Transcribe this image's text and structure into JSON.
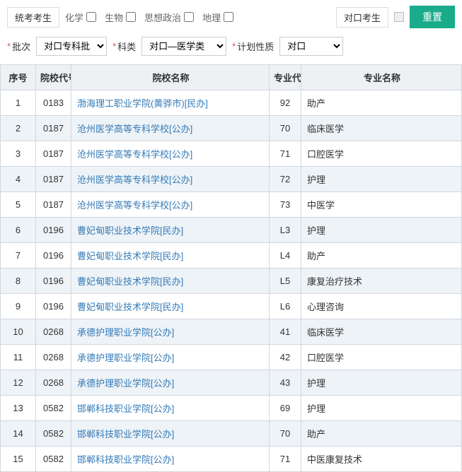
{
  "filters": {
    "examTypeUnified": "统考考生",
    "subjects": [
      {
        "label": "化学",
        "checked": false
      },
      {
        "label": "生物",
        "checked": false
      },
      {
        "label": "思想政治",
        "checked": false
      },
      {
        "label": "地理",
        "checked": false
      }
    ],
    "examTypeMatched": "对口考生",
    "resetLabel": "重置",
    "batchLabel": "批次",
    "batchValue": "对口专科批",
    "categoryLabel": "科类",
    "categoryValue": "对口—医学类",
    "planLabel": "计划性质",
    "planValue": "对口"
  },
  "table": {
    "headers": {
      "seq": "序号",
      "schoolCode": "院校代号",
      "schoolName": "院校名称",
      "majorCode": "专业代号",
      "majorName": "专业名称"
    },
    "rows": [
      {
        "seq": "1",
        "scode": "0183",
        "sname": "渤海理工职业学院(黄骅市)[民办]",
        "mcode": "92",
        "mname": "助产"
      },
      {
        "seq": "2",
        "scode": "0187",
        "sname": "沧州医学高等专科学校[公办]",
        "mcode": "70",
        "mname": "临床医学"
      },
      {
        "seq": "3",
        "scode": "0187",
        "sname": "沧州医学高等专科学校[公办]",
        "mcode": "71",
        "mname": "口腔医学"
      },
      {
        "seq": "4",
        "scode": "0187",
        "sname": "沧州医学高等专科学校[公办]",
        "mcode": "72",
        "mname": "护理"
      },
      {
        "seq": "5",
        "scode": "0187",
        "sname": "沧州医学高等专科学校[公办]",
        "mcode": "73",
        "mname": "中医学"
      },
      {
        "seq": "6",
        "scode": "0196",
        "sname": "曹妃甸职业技术学院[民办]",
        "mcode": "L3",
        "mname": "护理"
      },
      {
        "seq": "7",
        "scode": "0196",
        "sname": "曹妃甸职业技术学院[民办]",
        "mcode": "L4",
        "mname": "助产"
      },
      {
        "seq": "8",
        "scode": "0196",
        "sname": "曹妃甸职业技术学院[民办]",
        "mcode": "L5",
        "mname": "康复治疗技术"
      },
      {
        "seq": "9",
        "scode": "0196",
        "sname": "曹妃甸职业技术学院[民办]",
        "mcode": "L6",
        "mname": "心理咨询"
      },
      {
        "seq": "10",
        "scode": "0268",
        "sname": "承德护理职业学院[公办]",
        "mcode": "41",
        "mname": "临床医学"
      },
      {
        "seq": "11",
        "scode": "0268",
        "sname": "承德护理职业学院[公办]",
        "mcode": "42",
        "mname": "口腔医学"
      },
      {
        "seq": "12",
        "scode": "0268",
        "sname": "承德护理职业学院[公办]",
        "mcode": "43",
        "mname": "护理"
      },
      {
        "seq": "13",
        "scode": "0582",
        "sname": "邯郸科技职业学院[公办]",
        "mcode": "69",
        "mname": "护理"
      },
      {
        "seq": "14",
        "scode": "0582",
        "sname": "邯郸科技职业学院[公办]",
        "mcode": "70",
        "mname": "助产"
      },
      {
        "seq": "15",
        "scode": "0582",
        "sname": "邯郸科技职业学院[公办]",
        "mcode": "71",
        "mname": "中医康复技术"
      }
    ]
  },
  "colors": {
    "accent": "#1aab8a",
    "link": "#337ab7",
    "required": "#d9534f",
    "headerBg": "#eef1f4",
    "rowEvenBg": "#eef3f7",
    "border": "#d0d7de"
  }
}
